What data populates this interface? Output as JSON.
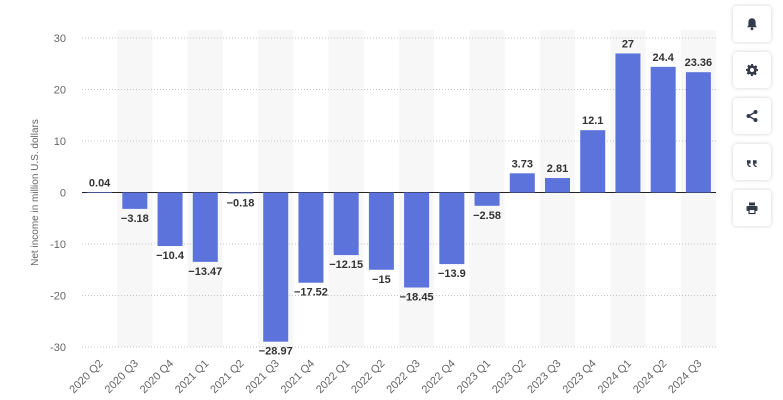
{
  "chart_data": {
    "type": "bar",
    "ylabel": "Net income in million U.S. dollars",
    "ylim": [
      -30,
      30
    ],
    "yticks": [
      30,
      20,
      10,
      0,
      -10,
      -20,
      -30
    ],
    "grid": true,
    "categories": [
      "2020 Q2",
      "2020 Q3",
      "2020 Q4",
      "2021 Q1",
      "2021 Q2",
      "2021 Q3",
      "2021 Q4",
      "2022 Q1",
      "2022 Q2",
      "2022 Q3",
      "2022 Q4",
      "2023 Q1",
      "2023 Q2",
      "2023 Q3",
      "2023 Q4",
      "2024 Q1",
      "2024 Q2",
      "2024 Q3"
    ],
    "values": [
      0.04,
      -3.18,
      -10.4,
      -13.47,
      -0.18,
      -28.97,
      -17.52,
      -12.15,
      -15,
      -18.45,
      -13.9,
      -2.58,
      3.73,
      2.81,
      12.1,
      27,
      24.4,
      23.36
    ],
    "value_labels": [
      "0.04",
      "−3.18",
      "−10.4",
      "−13.47",
      "−0.18",
      "−28.97",
      "−17.52",
      "−12.15",
      "−15",
      "−18.45",
      "−13.9",
      "−2.58",
      "3.73",
      "2.81",
      "12.1",
      "27",
      "24.4",
      "23.36"
    ],
    "bar_color": "#5b73da"
  },
  "toolbar": {
    "buttons": [
      {
        "name": "notification-button",
        "icon": "bell-icon"
      },
      {
        "name": "settings-button",
        "icon": "gear-icon"
      },
      {
        "name": "share-button",
        "icon": "share-icon"
      },
      {
        "name": "cite-button",
        "icon": "quote-icon"
      },
      {
        "name": "print-button",
        "icon": "printer-icon"
      }
    ]
  }
}
